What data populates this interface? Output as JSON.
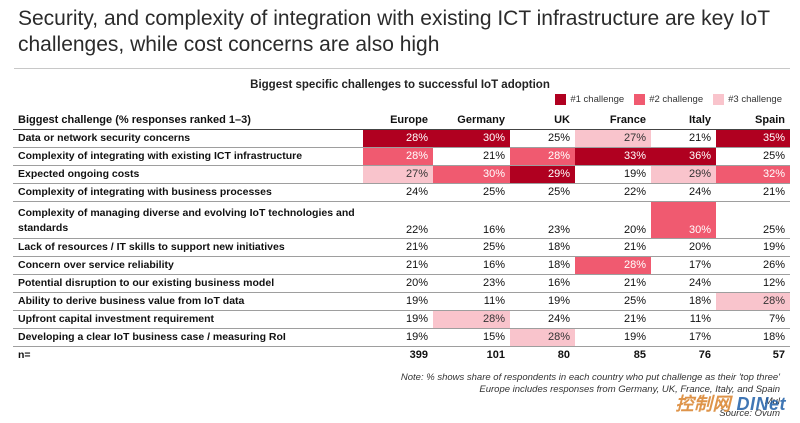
{
  "headline": "Security, and complexity of integration with existing ICT infrastructure are key IoT challenges, while cost concerns are also high",
  "chart_title": "Biggest specific challenges to successful IoT adoption",
  "legend": [
    {
      "label": "#1 challenge",
      "color": "#b00020"
    },
    {
      "label": "#2 challenge",
      "color": "#f05a70"
    },
    {
      "label": "#3 challenge",
      "color": "#f9c4cc"
    }
  ],
  "table": {
    "label_header": "Biggest challenge (% responses ranked 1–3)",
    "columns": [
      "Europe",
      "Germany",
      "UK",
      "France",
      "Italy",
      "Spain"
    ],
    "rows": [
      {
        "label": "Data or network security concerns",
        "values": [
          "28%",
          "30%",
          "25%",
          "27%",
          "21%",
          "35%"
        ],
        "ranks": [
          1,
          1,
          0,
          3,
          0,
          1
        ]
      },
      {
        "label": "Complexity of integrating with existing ICT infrastructure",
        "values": [
          "28%",
          "21%",
          "28%",
          "33%",
          "36%",
          "25%"
        ],
        "ranks": [
          2,
          0,
          2,
          1,
          1,
          0
        ]
      },
      {
        "label": "Expected ongoing costs",
        "values": [
          "27%",
          "30%",
          "29%",
          "19%",
          "29%",
          "32%"
        ],
        "ranks": [
          3,
          2,
          1,
          0,
          3,
          2
        ]
      },
      {
        "label": "Complexity of integrating with business processes",
        "values": [
          "24%",
          "25%",
          "25%",
          "22%",
          "24%",
          "21%"
        ],
        "ranks": [
          0,
          0,
          0,
          0,
          0,
          0
        ]
      },
      {
        "label": "Complexity of managing diverse and evolving IoT technologies and standards",
        "values": [
          "22%",
          "16%",
          "23%",
          "20%",
          "30%",
          "25%"
        ],
        "ranks": [
          0,
          0,
          0,
          0,
          2,
          0
        ],
        "tall": true
      },
      {
        "label": "Lack of resources / IT skills to support new initiatives",
        "values": [
          "21%",
          "25%",
          "18%",
          "21%",
          "20%",
          "19%"
        ],
        "ranks": [
          0,
          0,
          0,
          0,
          0,
          0
        ]
      },
      {
        "label": "Concern over service reliability",
        "values": [
          "21%",
          "16%",
          "18%",
          "28%",
          "17%",
          "26%"
        ],
        "ranks": [
          0,
          0,
          0,
          2,
          0,
          0
        ]
      },
      {
        "label": "Potential disruption to our existing business model",
        "values": [
          "20%",
          "23%",
          "16%",
          "21%",
          "24%",
          "12%"
        ],
        "ranks": [
          0,
          0,
          0,
          0,
          0,
          0
        ]
      },
      {
        "label": "Ability to derive business value from IoT data",
        "values": [
          "19%",
          "11%",
          "19%",
          "25%",
          "18%",
          "28%"
        ],
        "ranks": [
          0,
          0,
          0,
          0,
          0,
          3
        ]
      },
      {
        "label": "Upfront capital investment requirement",
        "values": [
          "19%",
          "28%",
          "24%",
          "21%",
          "11%",
          "7%"
        ],
        "ranks": [
          0,
          3,
          0,
          0,
          0,
          0
        ]
      },
      {
        "label": "Developing a clear IoT business case / measuring RoI",
        "values": [
          "19%",
          "15%",
          "28%",
          "19%",
          "17%",
          "18%"
        ],
        "ranks": [
          0,
          0,
          3,
          0,
          0,
          0
        ]
      }
    ],
    "total": {
      "label": "n=",
      "values": [
        "399",
        "101",
        "80",
        "85",
        "76",
        "57"
      ]
    }
  },
  "notes": [
    "Note: % shows share of respondents in each country who put challenge as their 'top three'",
    "Europe includes responses from Germany, UK, France, Italy, and Spain",
    "Mul",
    "Source: Ovum"
  ],
  "watermark": {
    "text_a": "控制网 ",
    "text_b": "DINet"
  }
}
